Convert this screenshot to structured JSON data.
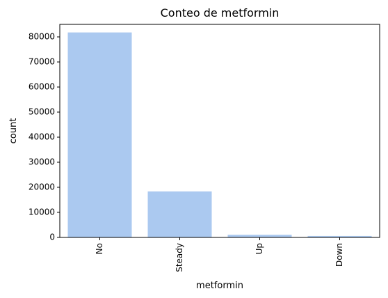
{
  "chart_data": {
    "type": "bar",
    "title": "Conteo de metformin",
    "xlabel": "metformin",
    "ylabel": "count",
    "categories": [
      "No",
      "Steady",
      "Up",
      "Down"
    ],
    "values": [
      81778,
      18346,
      1067,
      575
    ],
    "ylim": [
      0,
      85000
    ],
    "yticks": [
      0,
      10000,
      20000,
      30000,
      40000,
      50000,
      60000,
      70000,
      80000
    ],
    "grid": false,
    "bar_color": "#abc9f0",
    "xtick_rotation": "vertical"
  }
}
